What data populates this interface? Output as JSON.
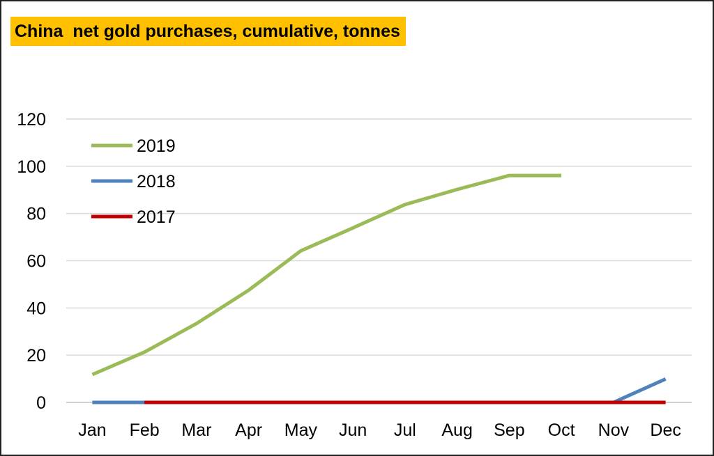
{
  "chart_data": {
    "type": "line",
    "title": "China  net gold purchases, cumulative, tonnes",
    "xlabel": "",
    "ylabel": "",
    "categories": [
      "Jan",
      "Feb",
      "Mar",
      "Apr",
      "May",
      "Jun",
      "Jul",
      "Aug",
      "Sep",
      "Oct",
      "Nov",
      "Dec"
    ],
    "ylim": [
      0,
      120
    ],
    "yticks": [
      0,
      20,
      40,
      60,
      80,
      100,
      120
    ],
    "grid": true,
    "legend_position": "top-left",
    "series": [
      {
        "name": "2019",
        "color": "#9bbb59",
        "values": [
          11.8,
          21.3,
          33.4,
          47.5,
          64.2,
          73.9,
          83.8,
          90.2,
          96.1,
          96.1,
          null,
          null
        ]
      },
      {
        "name": "2018",
        "color": "#4f81bd",
        "values": [
          0,
          0,
          0,
          0,
          0,
          0,
          0,
          0,
          0,
          0,
          0,
          9.9
        ]
      },
      {
        "name": "2017",
        "color": "#c00000",
        "values": [
          null,
          0,
          0,
          0,
          0,
          0,
          0,
          0,
          0,
          0,
          0,
          0
        ]
      }
    ]
  }
}
